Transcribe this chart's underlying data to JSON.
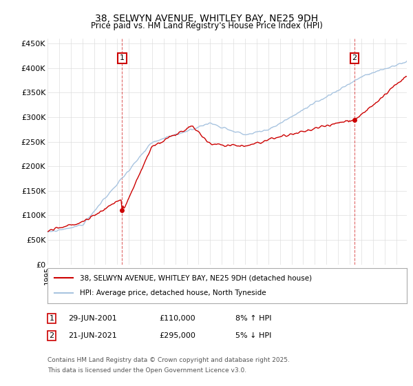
{
  "title": "38, SELWYN AVENUE, WHITLEY BAY, NE25 9DH",
  "subtitle": "Price paid vs. HM Land Registry's House Price Index (HPI)",
  "ylim": [
    0,
    460000
  ],
  "yticks": [
    0,
    50000,
    100000,
    150000,
    200000,
    250000,
    300000,
    350000,
    400000,
    450000
  ],
  "ytick_labels": [
    "£0",
    "£50K",
    "£100K",
    "£150K",
    "£200K",
    "£250K",
    "£300K",
    "£350K",
    "£400K",
    "£450K"
  ],
  "hpi_color": "#a8c4e0",
  "price_color": "#cc0000",
  "marker1_price": 110000,
  "marker1_year": "29-JUN-2001",
  "marker1_pct": "8% ↑ HPI",
  "marker2_price": 295000,
  "marker2_year": "21-JUN-2021",
  "marker2_pct": "5% ↓ HPI",
  "legend_label1": "38, SELWYN AVENUE, WHITLEY BAY, NE25 9DH (detached house)",
  "legend_label2": "HPI: Average price, detached house, North Tyneside",
  "footnote1": "Contains HM Land Registry data © Crown copyright and database right 2025.",
  "footnote2": "This data is licensed under the Open Government Licence v3.0.",
  "background_color": "#ffffff",
  "grid_color": "#dddddd"
}
